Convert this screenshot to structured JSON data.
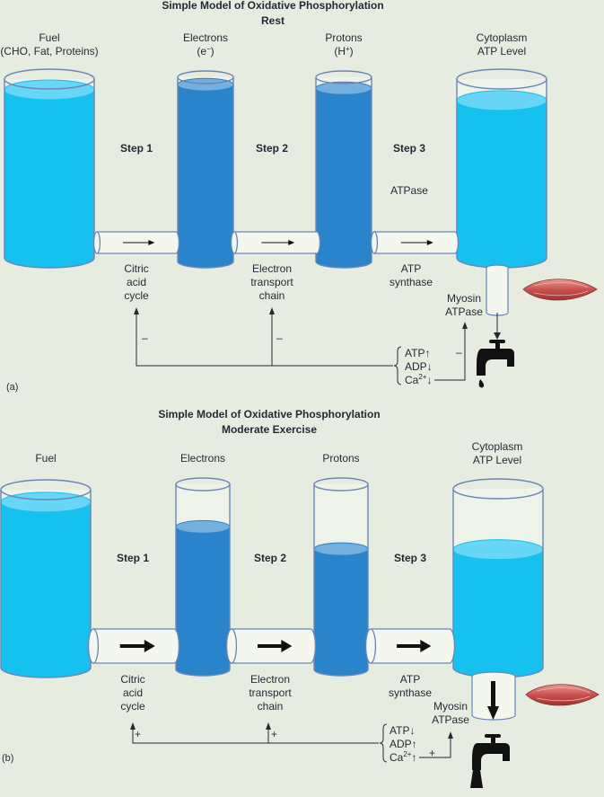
{
  "panel_a": {
    "title": "Simple Model of Oxidative Phosphorylation",
    "subtitle": "Rest",
    "panel_label": "(a)",
    "tanks": [
      {
        "label_line1": "Fuel",
        "label_line2": "(CHO, Fat, Proteins)",
        "fill_fraction": 0.94
      },
      {
        "label_line1": "Electrons",
        "label_line2_base": "(e",
        "label_line2_sup": "−",
        "label_line2_end": ")",
        "fill_fraction": 0.96
      },
      {
        "label_line1": "Protons",
        "label_line2_base": "(H",
        "label_line2_sup": "+",
        "label_line2_end": ")",
        "fill_fraction": 0.94
      },
      {
        "label_line1": "Cytoplasm",
        "label_line2": "ATP Level",
        "fill_fraction": 0.88
      }
    ],
    "steps": [
      "Step 1",
      "Step 2",
      "Step 3"
    ],
    "atpase_label": "ATPase",
    "pipe_labels": [
      [
        "Citric",
        "acid",
        "cycle"
      ],
      [
        "Electron",
        "transport",
        "chain"
      ],
      [
        "ATP",
        "synthase"
      ]
    ],
    "myosin_label": [
      "Myosin",
      "ATPase"
    ],
    "regulators": {
      "atp": "ATP↑",
      "adp": "ADP↓",
      "ca_base": "Ca",
      "ca_sup": "2+",
      "ca_arrow": "↓"
    },
    "feedback_signs": [
      "–",
      "–",
      "–"
    ]
  },
  "panel_b": {
    "title": "Simple Model of Oxidative Phosphorylation",
    "subtitle": "Moderate Exercise",
    "panel_label": "(b)",
    "tanks": [
      {
        "label_line1": "Fuel",
        "fill_fraction": 0.93
      },
      {
        "label_line1": "Electrons",
        "fill_fraction": 0.77
      },
      {
        "label_line1": "Protons",
        "fill_fraction": 0.65
      },
      {
        "label_line1": "Cytoplasm",
        "label_line2": "ATP Level",
        "fill_fraction": 0.66
      }
    ],
    "steps": [
      "Step 1",
      "Step 2",
      "Step 3"
    ],
    "pipe_labels": [
      [
        "Citric",
        "acid",
        "cycle"
      ],
      [
        "Electron",
        "transport",
        "chain"
      ],
      [
        "ATP",
        "synthase"
      ]
    ],
    "myosin_label": [
      "Myosin",
      "ATPase"
    ],
    "regulators": {
      "atp": "ATP↓",
      "adp": "ADP↑",
      "ca_base": "Ca",
      "ca_sup": "2+",
      "ca_arrow": "↑"
    },
    "feedback_signs": [
      "+",
      "+",
      "+"
    ]
  },
  "colors": {
    "background": "#e6ecdf",
    "light_water": "#16c0ef",
    "dark_water": "#2a84cb",
    "tank_outline": "#6a86b6",
    "pipe_fill": "#f3f7ee",
    "text": "#1f2a33",
    "muscle": "#c9504d"
  }
}
